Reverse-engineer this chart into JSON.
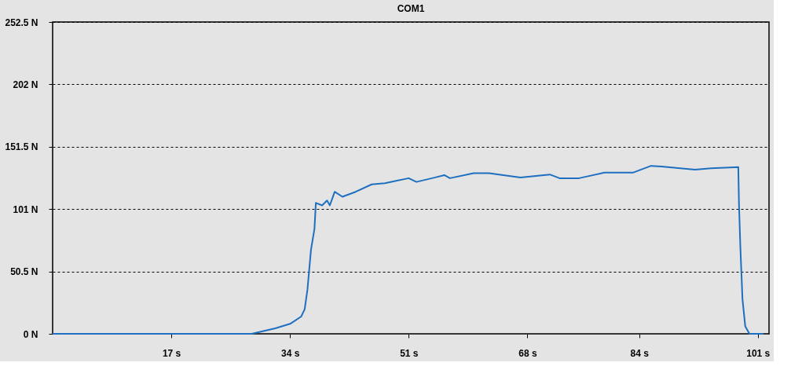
{
  "chart_data": {
    "type": "line",
    "title": "COM1",
    "x": [
      0,
      10,
      20,
      28.5,
      31.9,
      34.1,
      35.6,
      36.1,
      36.5,
      37.0,
      37.5,
      37.7,
      38.6,
      39.3,
      39.7,
      40.4,
      41.5,
      43.4,
      45.7,
      47.6,
      51.0,
      52.1,
      54.7,
      56.1,
      56.9,
      60.3,
      62.5,
      67.0,
      71.2,
      72.6,
      75.4,
      79.0,
      83.1,
      85.7,
      87.2,
      92.0,
      94.3,
      98.2,
      98.3,
      98.5,
      98.8,
      99.2,
      99.8,
      101.8
    ],
    "series": [
      {
        "color": "#1f6fc0",
        "values": [
          0,
          0,
          0,
          0,
          4.5,
          8.3,
          14,
          20,
          36,
          68,
          85,
          106,
          104,
          108,
          104,
          115,
          111,
          115,
          121,
          122,
          126,
          123,
          126.5,
          128.5,
          126,
          130,
          130,
          126.5,
          129,
          126,
          126,
          130.5,
          130.5,
          136,
          135.5,
          133,
          134,
          135,
          105,
          70,
          28,
          6,
          0,
          0
        ]
      }
    ],
    "xlim": [
      0,
      102.6
    ],
    "xticks": [
      {
        "value": 17,
        "label": "17 s"
      },
      {
        "value": 34,
        "label": "34 s"
      },
      {
        "value": 51,
        "label": "51 s"
      },
      {
        "value": 68,
        "label": "68 s"
      },
      {
        "value": 84,
        "label": "84 s"
      },
      {
        "value": 101,
        "label": "101 s"
      }
    ],
    "ylim": [
      0,
      252.5
    ],
    "yticks": [
      {
        "value": 0,
        "label": "0 N"
      },
      {
        "value": 50.5,
        "label": "50.5 N"
      },
      {
        "value": 101,
        "label": "101 N"
      },
      {
        "value": 151.5,
        "label": "151.5 N"
      },
      {
        "value": 202,
        "label": "202 N"
      },
      {
        "value": 252.5,
        "label": "252.5 N"
      }
    ],
    "grid": "y",
    "line_style": "solid",
    "marker": "none"
  }
}
